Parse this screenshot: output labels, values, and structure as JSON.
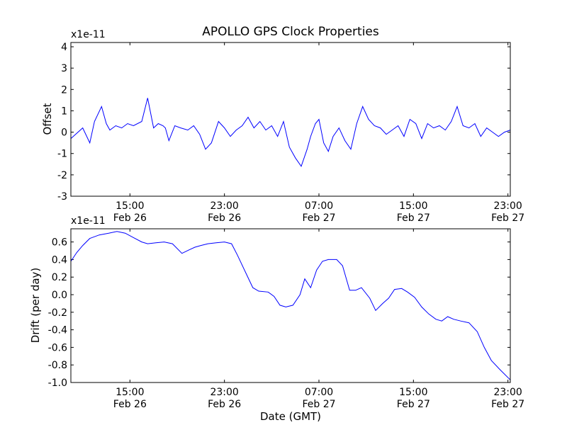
{
  "chart_data": [
    {
      "type": "line",
      "title": "APOLLO GPS Clock Properties",
      "ylabel": "Offset",
      "y_multiplier_label": "x1e-11",
      "xlabel": "",
      "ylim": [
        -3,
        4.2
      ],
      "x_unit": "hours since 2013-02-26 10:00 GMT",
      "xlim_hours": [
        0,
        37.2
      ],
      "x_ticks": [
        {
          "hour": 5,
          "time": "15:00",
          "date": "Feb 26"
        },
        {
          "hour": 13,
          "time": "23:00",
          "date": "Feb 26"
        },
        {
          "hour": 21,
          "time": "07:00",
          "date": "Feb 27"
        },
        {
          "hour": 29,
          "time": "15:00",
          "date": "Feb 27"
        },
        {
          "hour": 37,
          "time": "23:00",
          "date": "Feb 27"
        }
      ],
      "y_ticks": [
        "-3",
        "-2",
        "-1",
        "0",
        "1",
        "2",
        "3",
        "4"
      ],
      "line_color": "#0000ff",
      "series": [
        {
          "x": [
            0,
            1,
            1.6,
            2,
            2.6,
            3,
            3.3,
            3.8,
            4.3,
            4.8,
            5.3,
            6,
            6.5,
            7,
            7.4,
            7.8,
            8,
            8.3,
            8.8,
            9.3,
            9.9,
            10.4,
            10.9,
            11.4,
            11.9,
            12.5,
            13,
            13.5,
            14,
            14.5,
            15,
            15.5,
            16,
            16.5,
            17,
            17.5,
            18,
            18.5,
            19,
            19.5,
            20,
            20.3,
            20.7,
            21,
            21.4,
            21.8,
            22.2,
            22.7,
            23.2,
            23.7,
            24.2,
            24.7,
            25.2,
            25.7,
            26.2,
            26.7,
            27.2,
            27.7,
            28.2,
            28.7,
            29.2,
            29.7,
            30.2,
            30.7,
            31.2,
            31.7,
            32.2,
            32.7,
            33.2,
            33.7,
            34.2,
            34.7,
            35.2,
            35.7,
            36.2,
            36.7,
            37.2
          ],
          "y": [
            -0.3,
            0.2,
            -0.5,
            0.5,
            1.2,
            0.4,
            0.1,
            0.3,
            0.2,
            0.4,
            0.3,
            0.5,
            1.6,
            0.2,
            0.4,
            0.3,
            0.2,
            -0.4,
            0.3,
            0.2,
            0.1,
            0.3,
            -0.1,
            -0.8,
            -0.5,
            0.5,
            0.2,
            -0.2,
            0.1,
            0.3,
            0.7,
            0.2,
            0.5,
            0.1,
            0.3,
            -0.2,
            0.5,
            -0.7,
            -1.2,
            -1.6,
            -0.8,
            -0.2,
            0.4,
            0.6,
            -0.5,
            -0.9,
            -0.2,
            0.2,
            -0.4,
            -0.8,
            0.4,
            1.2,
            0.6,
            0.3,
            0.2,
            -0.1,
            0.1,
            0.3,
            -0.2,
            0.6,
            0.4,
            -0.3,
            0.4,
            0.2,
            0.3,
            0.1,
            0.5,
            1.2,
            0.3,
            0.2,
            0.4,
            -0.2,
            0.2,
            0.0,
            -0.2,
            0.0,
            0.1
          ]
        }
      ]
    },
    {
      "type": "line",
      "title": "",
      "ylabel": "Drift (per day)",
      "y_multiplier_label": "x1e-11",
      "xlabel": "Date (GMT)",
      "ylim": [
        -1.0,
        0.75
      ],
      "x_unit": "hours since 2013-02-26 10:00 GMT",
      "xlim_hours": [
        0,
        37.2
      ],
      "x_ticks": [
        {
          "hour": 5,
          "time": "15:00",
          "date": "Feb 26"
        },
        {
          "hour": 13,
          "time": "23:00",
          "date": "Feb 26"
        },
        {
          "hour": 21,
          "time": "07:00",
          "date": "Feb 27"
        },
        {
          "hour": 29,
          "time": "15:00",
          "date": "Feb 27"
        },
        {
          "hour": 37,
          "time": "23:00",
          "date": "Feb 27"
        }
      ],
      "y_ticks": [
        "-1.0",
        "-0.8",
        "-0.6",
        "-0.4",
        "-0.2",
        "0.0",
        "0.2",
        "0.4",
        "0.6"
      ],
      "line_color": "#0000ff",
      "series": [
        {
          "x": [
            0,
            0.5,
            1.0,
            1.6,
            2.4,
            3.2,
            3.9,
            4.6,
            5.3,
            6.0,
            6.5,
            7.2,
            7.9,
            8.6,
            9.4,
            10.0,
            10.5,
            11.0,
            11.6,
            12.3,
            13.0,
            13.6,
            14.1,
            14.8,
            15.4,
            15.9,
            16.7,
            17.2,
            17.7,
            18.2,
            18.8,
            19.4,
            19.8,
            20.3,
            20.8,
            21.3,
            21.8,
            22.5,
            23.0,
            23.6,
            24.1,
            24.6,
            25.3,
            25.8,
            26.4,
            26.9,
            27.4,
            28.0,
            28.5,
            29.1,
            29.7,
            30.3,
            30.9,
            31.4,
            31.9,
            32.4,
            33.0,
            33.7,
            34.4,
            35.0,
            35.6,
            36.3,
            37.2
          ],
          "y": [
            0.38,
            0.48,
            0.56,
            0.64,
            0.68,
            0.7,
            0.72,
            0.7,
            0.65,
            0.6,
            0.58,
            0.59,
            0.6,
            0.58,
            0.47,
            0.51,
            0.54,
            0.56,
            0.58,
            0.59,
            0.6,
            0.58,
            0.45,
            0.25,
            0.08,
            0.04,
            0.03,
            -0.02,
            -0.12,
            -0.14,
            -0.12,
            0.0,
            0.18,
            0.08,
            0.28,
            0.38,
            0.4,
            0.4,
            0.33,
            0.05,
            0.05,
            0.08,
            -0.04,
            -0.18,
            -0.1,
            -0.04,
            0.06,
            0.07,
            0.03,
            -0.03,
            -0.14,
            -0.22,
            -0.28,
            -0.3,
            -0.25,
            -0.28,
            -0.3,
            -0.32,
            -0.42,
            -0.6,
            -0.75,
            -0.85,
            -0.97
          ]
        }
      ]
    }
  ]
}
